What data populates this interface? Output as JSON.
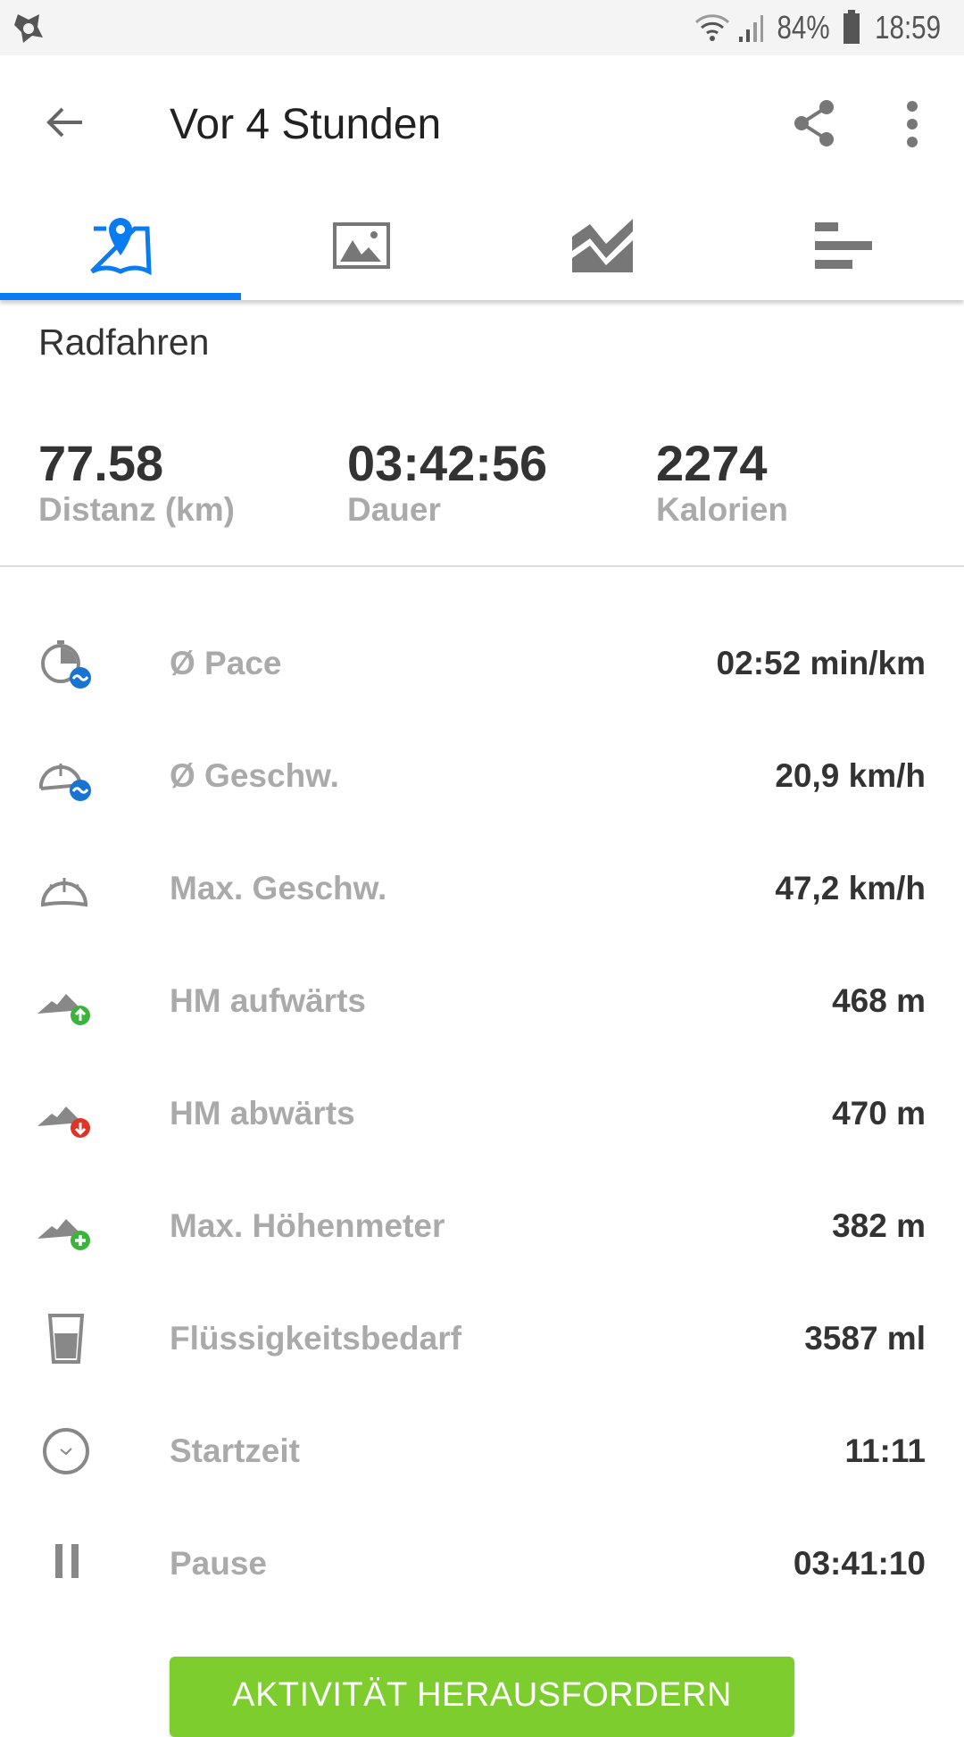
{
  "status_bar": {
    "battery": "84%",
    "time": "18:59"
  },
  "toolbar": {
    "title": "Vor 4 Stunden"
  },
  "tabs": [
    {
      "name": "map",
      "icon": "map-pin-icon",
      "active": true
    },
    {
      "name": "photos",
      "icon": "image-icon",
      "active": false
    },
    {
      "name": "charts",
      "icon": "area-chart-icon",
      "active": false
    },
    {
      "name": "details",
      "icon": "bars-icon",
      "active": false
    }
  ],
  "activity": {
    "sport": "Radfahren",
    "summary": [
      {
        "value": "77.58",
        "label": "Distanz (km)"
      },
      {
        "value": "03:42:56",
        "label": "Dauer"
      },
      {
        "value": "2274",
        "label": "Kalorien"
      }
    ],
    "details": [
      {
        "icon": "pace-icon",
        "label": "Ø Pace",
        "value": "02:52 min/km"
      },
      {
        "icon": "avg-speed-icon",
        "label": "Ø Geschw.",
        "value": "20,9 km/h"
      },
      {
        "icon": "max-speed-icon",
        "label": "Max. Geschw.",
        "value": "47,2 km/h"
      },
      {
        "icon": "elevation-up-icon",
        "label": "HM aufwärts",
        "value": "468 m"
      },
      {
        "icon": "elevation-down-icon",
        "label": "HM abwärts",
        "value": "470 m"
      },
      {
        "icon": "elevation-max-icon",
        "label": "Max. Höhenmeter",
        "value": "382 m"
      },
      {
        "icon": "glass-icon",
        "label": "Flüssigkeitsbedarf",
        "value": "3587 ml"
      },
      {
        "icon": "clock-icon",
        "label": "Startzeit",
        "value": "11:11"
      },
      {
        "icon": "pause-icon",
        "label": "Pause",
        "value": "03:41:10"
      }
    ]
  },
  "cta": {
    "label": "AKTIVITÄT HERAUSFORDERN"
  },
  "colors": {
    "accent": "#0a7bf0",
    "cta": "#7dcd2f",
    "up": "#3cb33c",
    "down": "#e0342a",
    "avg": "#1a73d0"
  }
}
